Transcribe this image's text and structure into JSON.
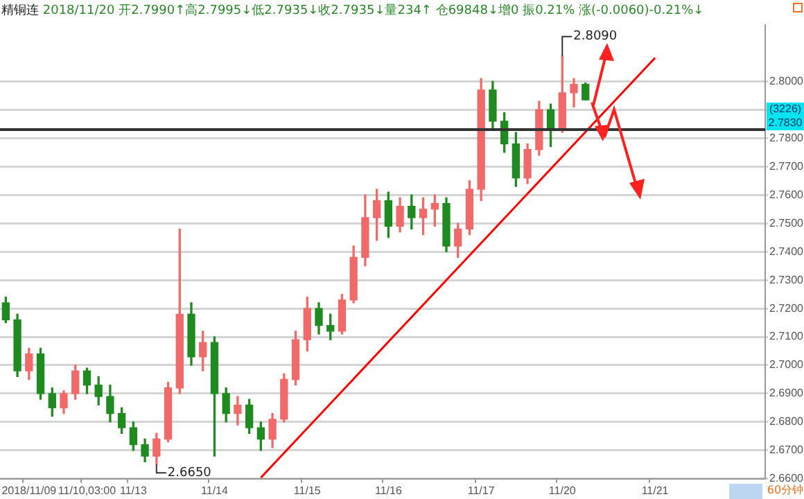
{
  "chart_data": {
    "type": "candlestick",
    "title": "精铜连",
    "subtitle": "2018/11/20 开2.7990↑高2.7995↓低2.7935↓收2.7935↓量234↑ 仓69848↓增0 振0.21% 涨(-0.0060)-0.21%↓",
    "categories": [
      null,
      null,
      "2018/11/09",
      null,
      null,
      null,
      null,
      "11/10,03:00",
      null,
      null,
      null,
      "11/13",
      null,
      null,
      null,
      null,
      null,
      null,
      "11/14",
      null,
      null,
      null,
      null,
      null,
      null,
      null,
      "11/15",
      null,
      null,
      null,
      null,
      null,
      null,
      "11/16",
      null,
      null,
      null,
      null,
      null,
      null,
      null,
      "11/17",
      null,
      null,
      null,
      null,
      null,
      null,
      "11/20",
      null,
      null,
      null,
      null,
      null,
      null,
      null,
      "11/21",
      null,
      null,
      null,
      null,
      null,
      null,
      null,
      null,
      null
    ],
    "ohlc": [
      [
        2.722,
        2.724,
        2.715,
        2.716
      ],
      [
        2.716,
        2.718,
        2.696,
        2.698
      ],
      [
        2.698,
        2.706,
        2.695,
        2.704
      ],
      [
        2.704,
        2.706,
        2.688,
        2.69
      ],
      [
        2.69,
        2.692,
        2.682,
        2.685
      ],
      [
        2.685,
        2.691,
        2.683,
        2.69
      ],
      [
        2.69,
        2.7,
        2.688,
        2.698
      ],
      [
        2.698,
        2.699,
        2.69,
        2.693
      ],
      [
        2.693,
        2.696,
        2.686,
        2.689
      ],
      [
        2.689,
        2.693,
        2.68,
        2.683
      ],
      [
        2.683,
        2.685,
        2.676,
        2.678
      ],
      [
        2.678,
        2.68,
        2.67,
        2.672
      ],
      [
        2.672,
        2.674,
        2.666,
        2.668
      ],
      [
        2.668,
        2.676,
        2.665,
        2.674
      ],
      [
        2.674,
        2.694,
        2.673,
        2.692
      ],
      [
        2.692,
        2.748,
        2.69,
        2.718
      ],
      [
        2.718,
        2.722,
        2.7,
        2.703
      ],
      [
        2.703,
        2.712,
        2.698,
        2.708
      ],
      [
        2.708,
        2.71,
        2.668,
        2.69
      ],
      [
        2.69,
        2.692,
        2.68,
        2.683
      ],
      [
        2.683,
        2.689,
        2.679,
        2.686
      ],
      [
        2.686,
        2.688,
        2.676,
        2.678
      ],
      [
        2.678,
        2.68,
        2.67,
        2.674
      ],
      [
        2.674,
        2.683,
        2.671,
        2.681
      ],
      [
        2.681,
        2.697,
        2.68,
        2.695
      ],
      [
        2.695,
        2.712,
        2.693,
        2.709
      ],
      [
        2.709,
        2.724,
        2.705,
        2.72
      ],
      [
        2.72,
        2.722,
        2.711,
        2.714
      ],
      [
        2.714,
        2.718,
        2.709,
        2.712
      ],
      [
        2.712,
        2.725,
        2.711,
        2.723
      ],
      [
        2.723,
        2.742,
        2.722,
        2.738
      ],
      [
        2.738,
        2.76,
        2.735,
        2.752
      ],
      [
        2.752,
        2.762,
        2.744,
        2.758
      ],
      [
        2.758,
        2.761,
        2.745,
        2.749
      ],
      [
        2.749,
        2.759,
        2.747,
        2.756
      ],
      [
        2.756,
        2.76,
        2.748,
        2.752
      ],
      [
        2.752,
        2.759,
        2.746,
        2.755
      ],
      [
        2.755,
        2.76,
        2.749,
        2.757
      ],
      [
        2.757,
        2.759,
        2.74,
        2.742
      ],
      [
        2.742,
        2.75,
        2.738,
        2.748
      ],
      [
        2.748,
        2.765,
        2.746,
        2.762
      ],
      [
        2.762,
        2.801,
        2.758,
        2.797
      ],
      [
        2.797,
        2.8,
        2.783,
        2.786
      ],
      [
        2.786,
        2.789,
        2.775,
        2.778
      ],
      [
        2.778,
        2.782,
        2.763,
        2.766
      ],
      [
        2.766,
        2.778,
        2.764,
        2.776
      ],
      [
        2.776,
        2.793,
        2.774,
        2.79
      ],
      [
        2.79,
        2.792,
        2.777,
        2.783
      ],
      [
        2.783,
        2.809,
        2.782,
        2.796
      ],
      [
        2.796,
        2.801,
        2.791,
        2.799
      ],
      [
        2.799,
        2.7995,
        2.7935,
        2.7935
      ],
      null,
      null,
      null,
      null,
      null,
      null,
      null,
      null,
      null,
      null,
      null,
      null,
      null,
      null,
      null
    ],
    "series": [
      {
        "type": "line",
        "color": "#ff0000",
        "values": [
          null,
          null,
          null,
          null,
          null,
          null,
          null,
          null,
          null,
          null,
          null,
          null,
          null,
          null,
          null,
          null,
          null,
          null,
          null,
          null,
          null,
          null,
          2.6604,
          null,
          null,
          null,
          null,
          null,
          null,
          null,
          null,
          null,
          null,
          null,
          null,
          null,
          null,
          null,
          null,
          null,
          null,
          null,
          null,
          null,
          null,
          null,
          null,
          null,
          null,
          null,
          null,
          null,
          null,
          null,
          null,
          null,
          2.8083,
          null,
          null,
          null,
          null,
          null,
          null,
          null,
          null,
          null
        ]
      }
    ],
    "ylim": [
      2.66,
      2.82
    ],
    "yticks": [
      {
        "value": 2.66,
        "label": "2.6600"
      },
      {
        "value": 2.67,
        "label": "2.6700"
      },
      {
        "value": 2.68,
        "label": "2.6800"
      },
      {
        "value": 2.69,
        "label": "2.6900"
      },
      {
        "value": 2.7,
        "label": "2.7000"
      },
      {
        "value": 2.71,
        "label": "2.7100"
      },
      {
        "value": 2.72,
        "label": "2.7200"
      },
      {
        "value": 2.73,
        "label": "2.7300"
      },
      {
        "value": 2.74,
        "label": "2.7400"
      },
      {
        "value": 2.75,
        "label": "2.7500"
      },
      {
        "value": 2.76,
        "label": "2.7600"
      },
      {
        "value": 2.77,
        "label": "2.7700"
      },
      {
        "value": 2.78,
        "label": "2.7800"
      },
      {
        "value": 2.79,
        "label": null
      },
      {
        "value": 2.8,
        "label": "2.8000"
      }
    ],
    "ref_lines": [
      {
        "axis": "y",
        "value": 2.783,
        "label": "2.7830",
        "color": "#333333"
      }
    ],
    "annotations": [
      "2.8090",
      "2.6650",
      "(3226)",
      "60分钟"
    ],
    "grid": "y",
    "legend": false,
    "marker": "none",
    "line_style": "solid"
  }
}
